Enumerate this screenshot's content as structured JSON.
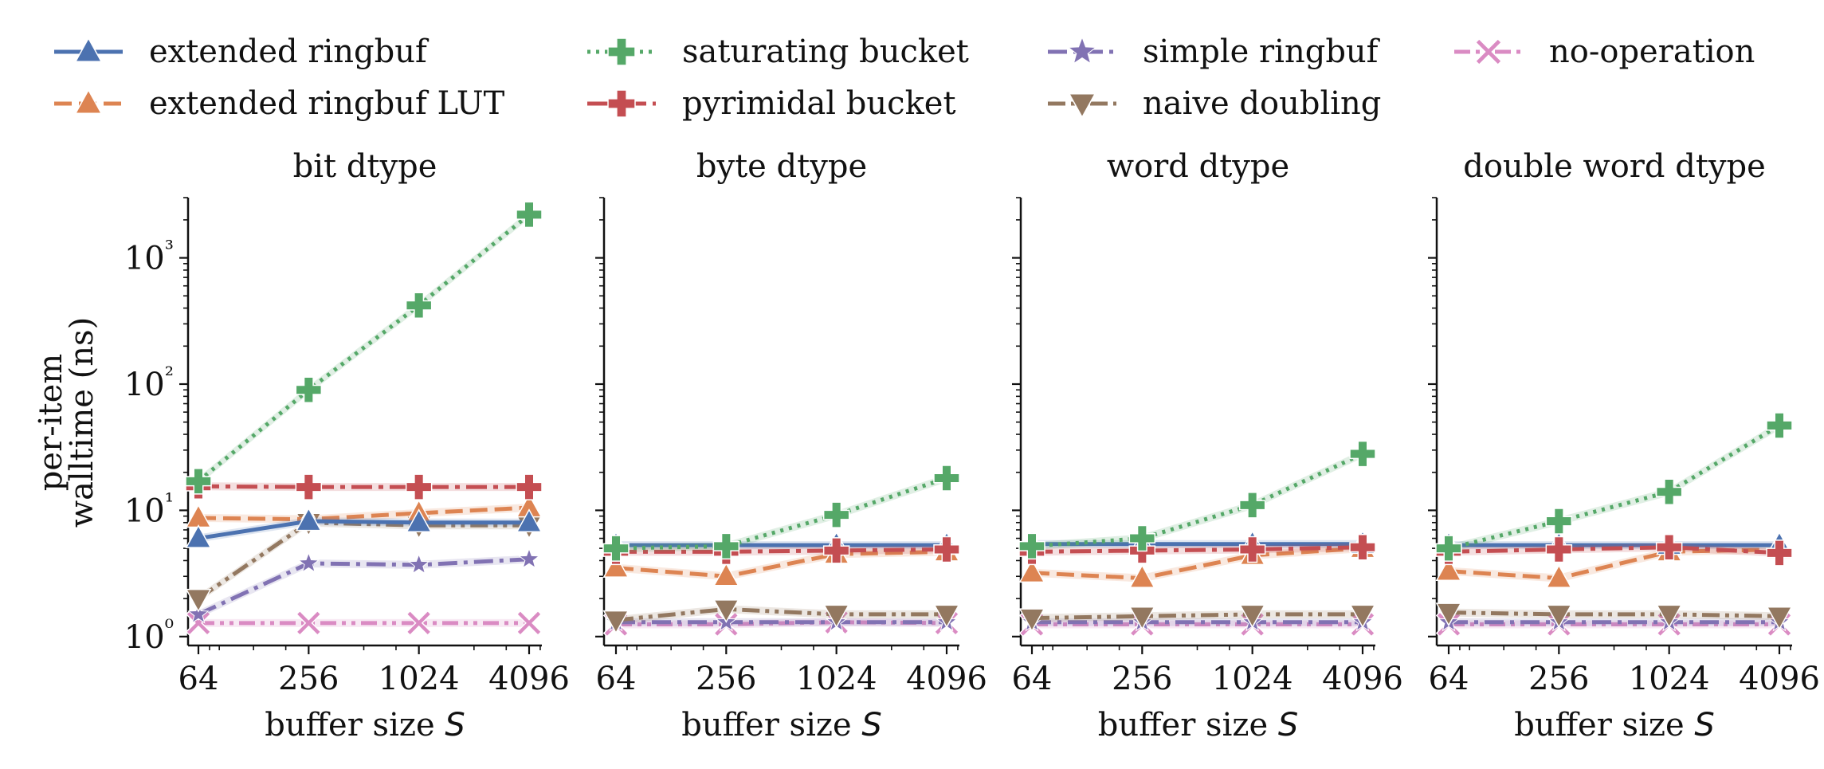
{
  "legend": {
    "placement": "top",
    "items": [
      {
        "key": "ext",
        "label": "extended ringbuf",
        "color": "#4c72b0",
        "marker": "triangle-up",
        "dash": "solid"
      },
      {
        "key": "sat",
        "label": "saturating bucket",
        "color": "#55a868",
        "marker": "plus",
        "dash": "dotted"
      },
      {
        "key": "simple",
        "label": "simple ringbuf",
        "color": "#8172b3",
        "marker": "star",
        "dash": "dashdot"
      },
      {
        "key": "noop",
        "label": "no-operation",
        "color": "#da8bc3",
        "marker": "x",
        "dash": "dashdotdot"
      },
      {
        "key": "extlut",
        "label": "extended ringbuf LUT",
        "color": "#dd8452",
        "marker": "triangle-up",
        "dash": "dashed"
      },
      {
        "key": "pyr",
        "label": "pyrimidal bucket",
        "color": "#c44e52",
        "marker": "plus",
        "dash": "dashdot-long"
      },
      {
        "key": "naive",
        "label": "naive doubling",
        "color": "#937860",
        "marker": "triangle-down",
        "dash": "dashdotdot-long"
      }
    ]
  },
  "shared_axes": {
    "ylabel_line1": "per-item",
    "ylabel_line2": "walltime (ns)",
    "xlabel_text": "buffer size ",
    "xlabel_var": "S"
  },
  "chart_data": [
    {
      "type": "line",
      "title": "bit dtype",
      "x": [
        64,
        256,
        1024,
        4096
      ],
      "x_ticks": [
        "64",
        "256",
        "1024",
        "4096"
      ],
      "x_scale": "log2",
      "y_scale": "log10",
      "ylim": [
        0.85,
        3000
      ],
      "y_ticks": [
        "10⁰",
        "10¹",
        "10²",
        "10³"
      ],
      "grid": false,
      "series": [
        {
          "name": "extended ringbuf",
          "values": [
            6.0,
            8.2,
            8.0,
            8.0
          ]
        },
        {
          "name": "extended ringbuf LUT",
          "values": [
            8.7,
            8.5,
            9.5,
            10.5
          ]
        },
        {
          "name": "saturating bucket",
          "values": [
            17.0,
            90.0,
            420.0,
            2200.0
          ]
        },
        {
          "name": "pyrimidal bucket",
          "values": [
            15.5,
            15.3,
            15.3,
            15.3
          ]
        },
        {
          "name": "simple ringbuf",
          "values": [
            1.5,
            3.8,
            3.7,
            4.1
          ]
        },
        {
          "name": "naive doubling",
          "values": [
            2.0,
            8.0,
            7.6,
            7.6
          ]
        },
        {
          "name": "no-operation",
          "values": [
            1.28,
            1.28,
            1.28,
            1.28
          ]
        }
      ]
    },
    {
      "type": "line",
      "title": "byte dtype",
      "x": [
        64,
        256,
        1024,
        4096
      ],
      "x_ticks": [
        "64",
        "256",
        "1024",
        "4096"
      ],
      "x_scale": "log2",
      "y_scale": "log10",
      "ylim": [
        0.85,
        3000
      ],
      "grid": false,
      "series": [
        {
          "name": "extended ringbuf",
          "values": [
            5.3,
            5.3,
            5.3,
            5.3
          ]
        },
        {
          "name": "extended ringbuf LUT",
          "values": [
            3.5,
            3.0,
            4.5,
            4.7
          ]
        },
        {
          "name": "saturating bucket",
          "values": [
            5.0,
            5.2,
            9.2,
            18.0
          ]
        },
        {
          "name": "pyrimidal bucket",
          "values": [
            4.7,
            4.7,
            4.8,
            4.9
          ]
        },
        {
          "name": "simple ringbuf",
          "values": [
            1.3,
            1.3,
            1.3,
            1.3
          ]
        },
        {
          "name": "naive doubling",
          "values": [
            1.35,
            1.65,
            1.5,
            1.5
          ]
        },
        {
          "name": "no-operation",
          "values": [
            1.25,
            1.25,
            1.3,
            1.28
          ]
        }
      ]
    },
    {
      "type": "line",
      "title": "word dtype",
      "x": [
        64,
        256,
        1024,
        4096
      ],
      "x_ticks": [
        "64",
        "256",
        "1024",
        "4096"
      ],
      "x_scale": "log2",
      "y_scale": "log10",
      "ylim": [
        0.85,
        3000
      ],
      "grid": false,
      "series": [
        {
          "name": "extended ringbuf",
          "values": [
            5.4,
            5.4,
            5.4,
            5.4
          ]
        },
        {
          "name": "extended ringbuf LUT",
          "values": [
            3.2,
            2.9,
            4.4,
            5.0
          ]
        },
        {
          "name": "saturating bucket",
          "values": [
            5.2,
            6.0,
            11.0,
            28.0
          ]
        },
        {
          "name": "pyrimidal bucket",
          "values": [
            4.7,
            4.8,
            4.9,
            5.1
          ]
        },
        {
          "name": "simple ringbuf",
          "values": [
            1.3,
            1.3,
            1.3,
            1.3
          ]
        },
        {
          "name": "naive doubling",
          "values": [
            1.4,
            1.45,
            1.5,
            1.5
          ]
        },
        {
          "name": "no-operation",
          "values": [
            1.25,
            1.25,
            1.25,
            1.25
          ]
        }
      ]
    },
    {
      "type": "line",
      "title": "double word dtype",
      "x": [
        64,
        256,
        1024,
        4096
      ],
      "x_ticks": [
        "64",
        "256",
        "1024",
        "4096"
      ],
      "x_scale": "log2",
      "y_scale": "log10",
      "ylim": [
        0.85,
        3000
      ],
      "grid": false,
      "series": [
        {
          "name": "extended ringbuf",
          "values": [
            5.3,
            5.3,
            5.3,
            5.3
          ]
        },
        {
          "name": "extended ringbuf LUT",
          "values": [
            3.3,
            2.9,
            4.7,
            4.9
          ]
        },
        {
          "name": "saturating bucket",
          "values": [
            5.0,
            8.2,
            14.0,
            47.0
          ]
        },
        {
          "name": "pyrimidal bucket",
          "values": [
            4.7,
            4.9,
            5.1,
            4.6
          ]
        },
        {
          "name": "simple ringbuf",
          "values": [
            1.3,
            1.3,
            1.3,
            1.3
          ]
        },
        {
          "name": "naive doubling",
          "values": [
            1.55,
            1.5,
            1.5,
            1.45
          ]
        },
        {
          "name": "no-operation",
          "values": [
            1.25,
            1.25,
            1.25,
            1.25
          ]
        }
      ]
    }
  ]
}
